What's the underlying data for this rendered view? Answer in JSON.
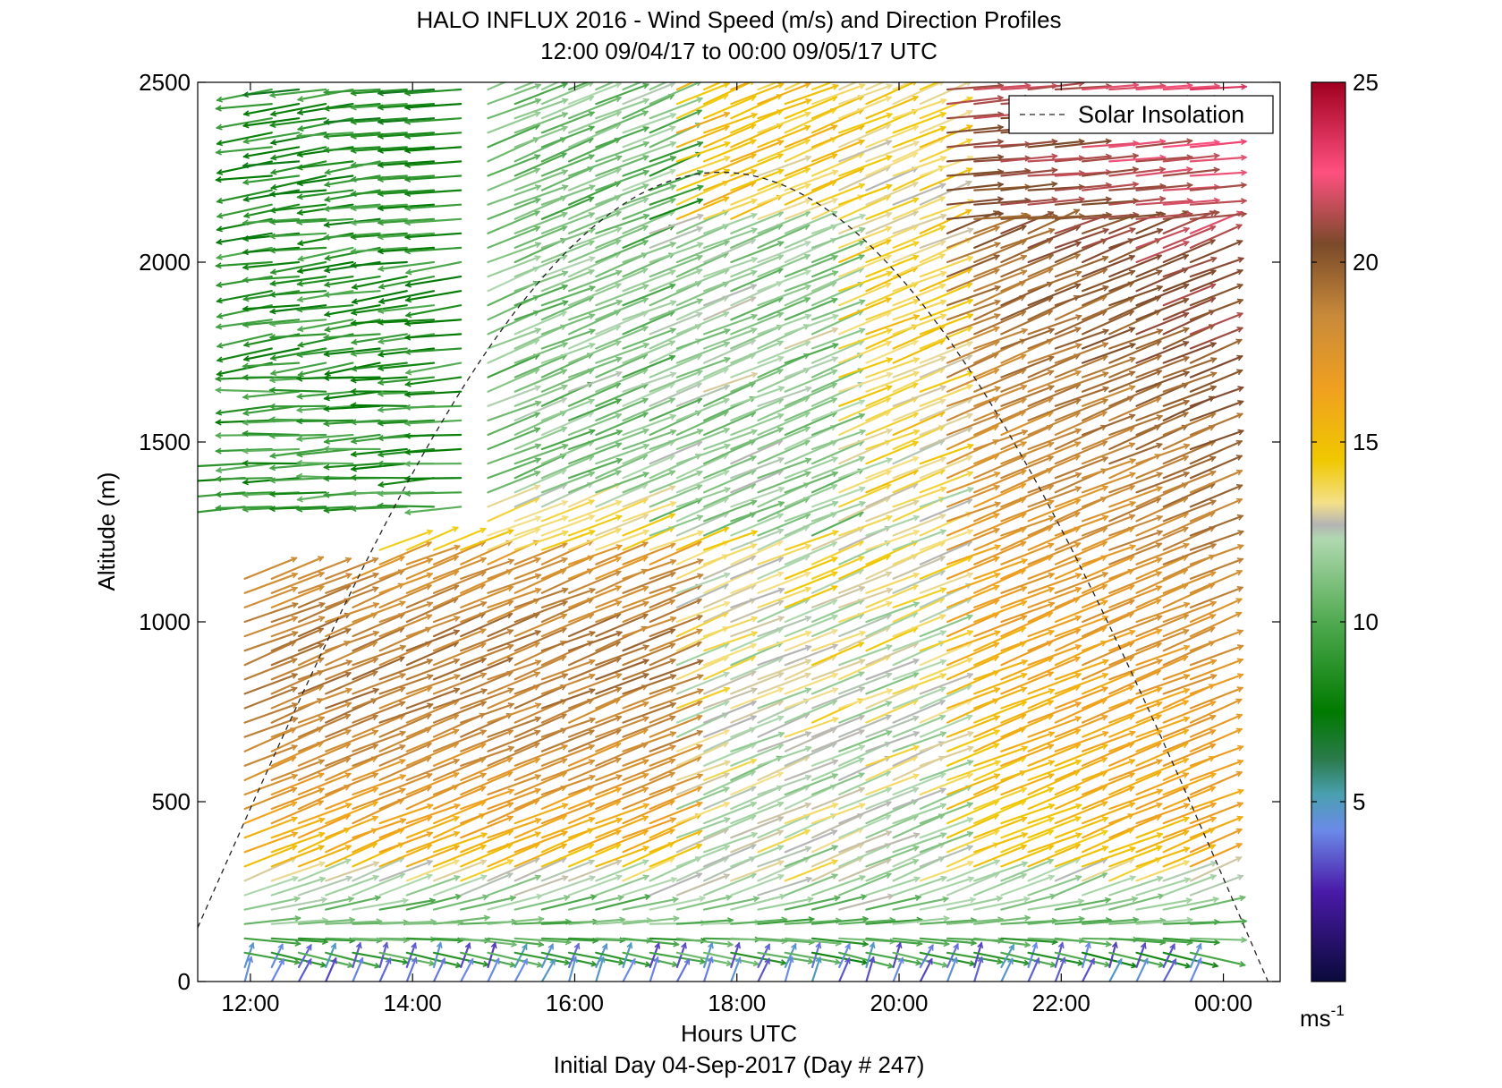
{
  "chart_data": {
    "type": "quiver",
    "title": "HALO INFLUX 2016 - Wind Speed (m/s) and Direction Profiles",
    "subtitle": "12:00 09/04/17 to 00:00 09/05/17  UTC",
    "xlabel": "Hours UTC",
    "xlabel2": "Initial Day 04-Sep-2017 (Day # 247)",
    "ylabel": "Altitude (m)",
    "x_range_hours": [
      11.35,
      24.7
    ],
    "y_range_m": [
      0,
      2500
    ],
    "x_ticks": [
      {
        "hour": 12,
        "label": "12:00"
      },
      {
        "hour": 14,
        "label": "14:00"
      },
      {
        "hour": 16,
        "label": "16:00"
      },
      {
        "hour": 18,
        "label": "18:00"
      },
      {
        "hour": 20,
        "label": "20:00"
      },
      {
        "hour": 22,
        "label": "22:00"
      },
      {
        "hour": 24,
        "label": "00:00"
      }
    ],
    "y_ticks": [
      {
        "value": 0,
        "label": "0"
      },
      {
        "value": 500,
        "label": "500"
      },
      {
        "value": 1000,
        "label": "1000"
      },
      {
        "value": 1500,
        "label": "1500"
      },
      {
        "value": 2000,
        "label": "2000"
      },
      {
        "value": 2500,
        "label": "2500"
      }
    ],
    "legend": {
      "entry": "Solar Insolation",
      "placement": "top-right",
      "style": "dashed"
    },
    "solar_insolation_curve": {
      "start_hour": 11.35,
      "start_alt": 150,
      "peak_hour": 17.8,
      "peak_alt": 2250,
      "end_hour": 24.55,
      "end_alt": 0
    },
    "colorbar": {
      "min": 0,
      "max": 25,
      "ticks": [
        {
          "value": 5,
          "label": "5"
        },
        {
          "value": 10,
          "label": "10"
        },
        {
          "value": 15,
          "label": "15"
        },
        {
          "value": 20,
          "label": "20"
        },
        {
          "value": 25,
          "label": "25"
        }
      ],
      "unit_base": "ms",
      "unit_exp": "-1",
      "stops": [
        {
          "v": 0,
          "c": "#0a0a3a"
        },
        {
          "v": 2.5,
          "c": "#4a1aa8"
        },
        {
          "v": 4.2,
          "c": "#6b8ae8"
        },
        {
          "v": 5.2,
          "c": "#4aa0b0"
        },
        {
          "v": 6.2,
          "c": "#2a7a4a"
        },
        {
          "v": 7.5,
          "c": "#007a00"
        },
        {
          "v": 10,
          "c": "#50aa50"
        },
        {
          "v": 12.3,
          "c": "#b0d8b0"
        },
        {
          "v": 12.7,
          "c": "#b4b4b4"
        },
        {
          "v": 13.3,
          "c": "#f4e08a"
        },
        {
          "v": 14.5,
          "c": "#f0c800"
        },
        {
          "v": 16.5,
          "c": "#f0a020"
        },
        {
          "v": 18.5,
          "c": "#c88a3a"
        },
        {
          "v": 20.5,
          "c": "#7a4a2a"
        },
        {
          "v": 22.5,
          "c": "#ff5080"
        },
        {
          "v": 25,
          "c": "#a00020"
        }
      ]
    },
    "wind_field": {
      "time_start_hour": 11.93,
      "time_end_hour": 23.8,
      "time_step_hour": 0.3333,
      "alt_start_m": 0,
      "alt_end_m": 2500,
      "alt_step_m": 40,
      "speed_ms_typical": {
        "upper_morning": 9,
        "boundary_layer_morning": 15,
        "midday_upper": 14,
        "afternoon_upper": 20,
        "near_surface": 8
      },
      "direction_note": "upper morning winds westward (toward left); rest toward upper-right"
    }
  }
}
